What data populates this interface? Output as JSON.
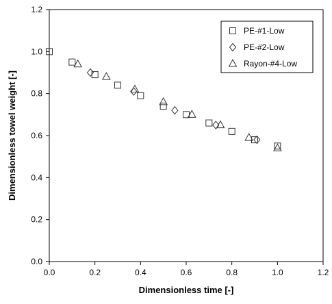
{
  "chart_data": {
    "type": "scatter",
    "title": "",
    "xlabel": "Dimensionless  time  [-]",
    "ylabel": "Dimensionless towel weight  [-]",
    "xlim": [
      0.0,
      1.2
    ],
    "ylim": [
      0.0,
      1.2
    ],
    "x_ticks": [
      0.0,
      0.2,
      0.4,
      0.6,
      0.8,
      1.0,
      1.2
    ],
    "y_ticks": [
      0.0,
      0.2,
      0.4,
      0.6,
      0.8,
      1.0,
      1.2
    ],
    "x_tick_labels": [
      "0.0",
      "0.2",
      "0.4",
      "0.6",
      "0.8",
      "1.0",
      "1.2"
    ],
    "y_tick_labels": [
      "0.0",
      "0.2",
      "0.4",
      "0.6",
      "0.8",
      "1.0",
      "1.2"
    ],
    "grid": false,
    "legend_position": "top-right",
    "series": [
      {
        "name": "PE-#1-Low",
        "marker": "square",
        "points": [
          {
            "x": 0.0,
            "y": 1.0
          },
          {
            "x": 0.1,
            "y": 0.95
          },
          {
            "x": 0.2,
            "y": 0.89
          },
          {
            "x": 0.3,
            "y": 0.84
          },
          {
            "x": 0.4,
            "y": 0.79
          },
          {
            "x": 0.5,
            "y": 0.74
          },
          {
            "x": 0.6,
            "y": 0.7
          },
          {
            "x": 0.7,
            "y": 0.66
          },
          {
            "x": 0.8,
            "y": 0.62
          },
          {
            "x": 0.9,
            "y": 0.58
          },
          {
            "x": 1.0,
            "y": 0.55
          }
        ]
      },
      {
        "name": "PE-#2-Low",
        "marker": "diamond",
        "points": [
          {
            "x": 0.18,
            "y": 0.9
          },
          {
            "x": 0.37,
            "y": 0.81
          },
          {
            "x": 0.55,
            "y": 0.72
          },
          {
            "x": 0.73,
            "y": 0.65
          },
          {
            "x": 0.91,
            "y": 0.58
          }
        ]
      },
      {
        "name": "Rayon-#4-Low",
        "marker": "triangle",
        "points": [
          {
            "x": 0.125,
            "y": 0.94
          },
          {
            "x": 0.25,
            "y": 0.88
          },
          {
            "x": 0.375,
            "y": 0.82
          },
          {
            "x": 0.5,
            "y": 0.76
          },
          {
            "x": 0.625,
            "y": 0.7
          },
          {
            "x": 0.75,
            "y": 0.65
          },
          {
            "x": 0.875,
            "y": 0.59
          },
          {
            "x": 1.0,
            "y": 0.54
          }
        ]
      }
    ]
  },
  "colors": {
    "marker_stroke": "#333333",
    "axis": "#000000",
    "background": "#ffffff"
  }
}
